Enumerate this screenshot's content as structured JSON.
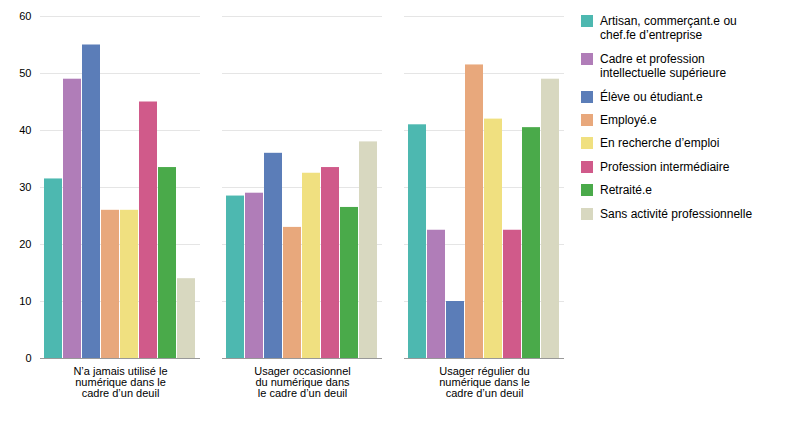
{
  "chart_data": {
    "type": "bar",
    "categories": [
      "N’a jamais utilisé le\nnumérique dans le\ncadre d’un deuil",
      "Usager occasionnel\ndu numérique dans\nle cadre d’un deuil",
      "Usager régulier du\nnumérique dans le\ncadre d’un deuil"
    ],
    "series": [
      {
        "name": "Artisan, commerçant.e ou\nchef.fe d’entreprise",
        "color": "#4db8b0",
        "values": [
          31.5,
          28.5,
          41.0
        ]
      },
      {
        "name": "Cadre et profession\nintellectuelle supérieure",
        "color": "#b07db8",
        "values": [
          49.0,
          29.0,
          22.5
        ]
      },
      {
        "name": "Élève ou étudiant.e",
        "color": "#5b7db8",
        "values": [
          55.0,
          36.0,
          10.0
        ]
      },
      {
        "name": "Employé.e",
        "color": "#e8a87c",
        "values": [
          26.0,
          23.0,
          51.5
        ]
      },
      {
        "name": "En recherche d’emploi",
        "color": "#f0e080",
        "values": [
          26.0,
          32.5,
          42.0
        ]
      },
      {
        "name": "Profession intermédiaire",
        "color": "#d05a8a",
        "values": [
          45.0,
          33.5,
          22.5
        ]
      },
      {
        "name": "Retraité.e",
        "color": "#4aaa4a",
        "values": [
          33.5,
          26.5,
          40.5
        ]
      },
      {
        "name": "Sans activité professionnelle",
        "color": "#d8d8c0",
        "values": [
          14.0,
          38.0,
          49.0
        ]
      }
    ],
    "ylim": [
      0,
      60
    ],
    "yticks": [
      0,
      10,
      20,
      30,
      40,
      50,
      60
    ],
    "grid": true,
    "legend": "right"
  }
}
